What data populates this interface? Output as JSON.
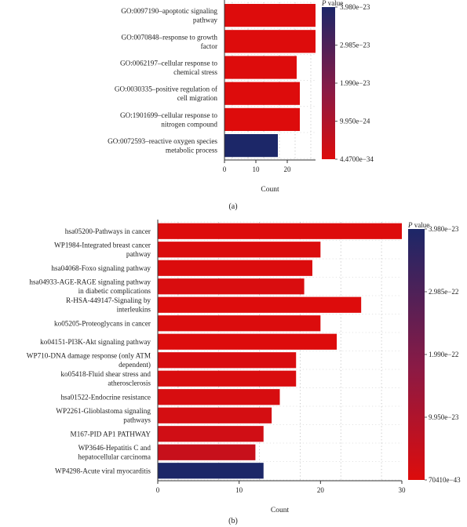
{
  "panel_a_label": "(a)",
  "panel_b_label": "(b)",
  "chart_data": [
    {
      "type": "bar",
      "orientation": "horizontal",
      "categories": [
        [
          "GO:0097190–apoptotic signaling",
          "pathway"
        ],
        [
          "GO:0070848–response to growth",
          "factor"
        ],
        [
          "GO:0062197–cellular response to",
          "chemical stress"
        ],
        [
          "GO:0030335–positive regulation of",
          "cell migration"
        ],
        [
          "GO:1901699–cellular response to",
          "nitrogen compound"
        ],
        [
          "GO:0072593–reactive oxygen species",
          "metabolic process"
        ]
      ],
      "values": [
        29,
        29,
        23,
        24,
        24,
        17
      ],
      "color_levels": [
        0.0,
        0.0,
        0.0,
        0.0,
        0.0,
        1.0
      ],
      "xlabel": "Count",
      "xticks": [
        0,
        10,
        20
      ],
      "xlim": [
        0,
        29
      ],
      "grid": true,
      "colorbar": {
        "title_italic": "P",
        "title_rest": " value",
        "labels": [
          "3.980e−23",
          "2.985e−23",
          "1.990e−23",
          "9.950e−24",
          "4.4700e−34"
        ],
        "color_high": "#1c2768",
        "color_low": "#dd0c0c"
      }
    },
    {
      "type": "bar",
      "orientation": "horizontal",
      "categories": [
        [
          "hsa05200-Pathways in cancer"
        ],
        [
          "WP1984-Integrated breast cancer",
          "pathway"
        ],
        [
          "hsa04068-Foxo signaling pathway"
        ],
        [
          "hsa04933-AGE-RAGE signaling pathway",
          "in diabetic complications"
        ],
        [
          "R-HSA-449147-Signaling by",
          "interleukins"
        ],
        [
          "ko05205-Proteoglycans in cancer"
        ],
        [
          "ko04151-PI3K-Akt signaling pathway"
        ],
        [
          "WP710-DNA damage response (only ATM",
          "dependent)"
        ],
        [
          "ko05418-Fluid shear stress and",
          "atherosclerosis"
        ],
        [
          "hsa01522-Endocrine resistance"
        ],
        [
          "WP2261-Glioblastoma signaling",
          "pathways"
        ],
        [
          "M167-PID AP1 PATHWAY"
        ],
        [
          "WP3646-Hepatitis C and",
          "hepatocellular carcinoma"
        ],
        [
          "WP4298-Acute viral myocarditis"
        ]
      ],
      "values": [
        30,
        20,
        19,
        18,
        25,
        20,
        22,
        17,
        17,
        15,
        14,
        13,
        12,
        13
      ],
      "color_levels": [
        0.0,
        0.01,
        0.01,
        0.02,
        0.0,
        0.01,
        0.0,
        0.02,
        0.02,
        0.03,
        0.05,
        0.07,
        0.12,
        1.0
      ],
      "xlabel": "Count",
      "xticks": [
        0,
        10,
        20,
        30
      ],
      "xlim": [
        0,
        30
      ],
      "grid": true,
      "colorbar": {
        "title_italic": "P",
        "title_rest": " value",
        "labels": [
          "3.980e−23",
          "2.985e−22",
          "1.990e−22",
          "9.950e−23",
          "70410e−43"
        ],
        "color_high": "#1c2768",
        "color_low": "#dd0c0c"
      }
    }
  ]
}
